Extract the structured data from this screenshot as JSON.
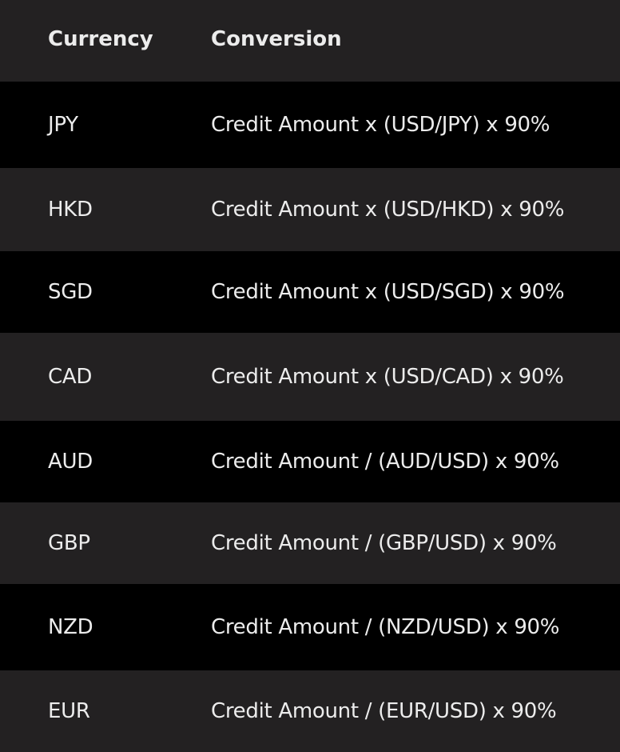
{
  "table": {
    "headers": [
      "Currency",
      "Conversion"
    ],
    "rows": [
      {
        "currency": "JPY",
        "conversion": "Credit Amount x (USD/JPY) x 90%"
      },
      {
        "currency": "HKD",
        "conversion": "Credit Amount x (USD/HKD) x 90%"
      },
      {
        "currency": "SGD",
        "conversion": "Credit Amount x (USD/SGD) x 90%"
      },
      {
        "currency": "CAD",
        "conversion": "Credit Amount x (USD/CAD) x 90%"
      },
      {
        "currency": "AUD",
        "conversion": "Credit Amount / (AUD/USD) x 90%"
      },
      {
        "currency": "GBP",
        "conversion": "Credit Amount / (GBP/USD) x 90%"
      },
      {
        "currency": "NZD",
        "conversion": "Credit Amount / (NZD/USD) x 90%"
      },
      {
        "currency": "EUR",
        "conversion": "Credit Amount / (EUR/USD) x 90%"
      }
    ]
  },
  "colors": {
    "row_dark": "#000000",
    "row_alt": "#232122",
    "text": "#ececec"
  }
}
